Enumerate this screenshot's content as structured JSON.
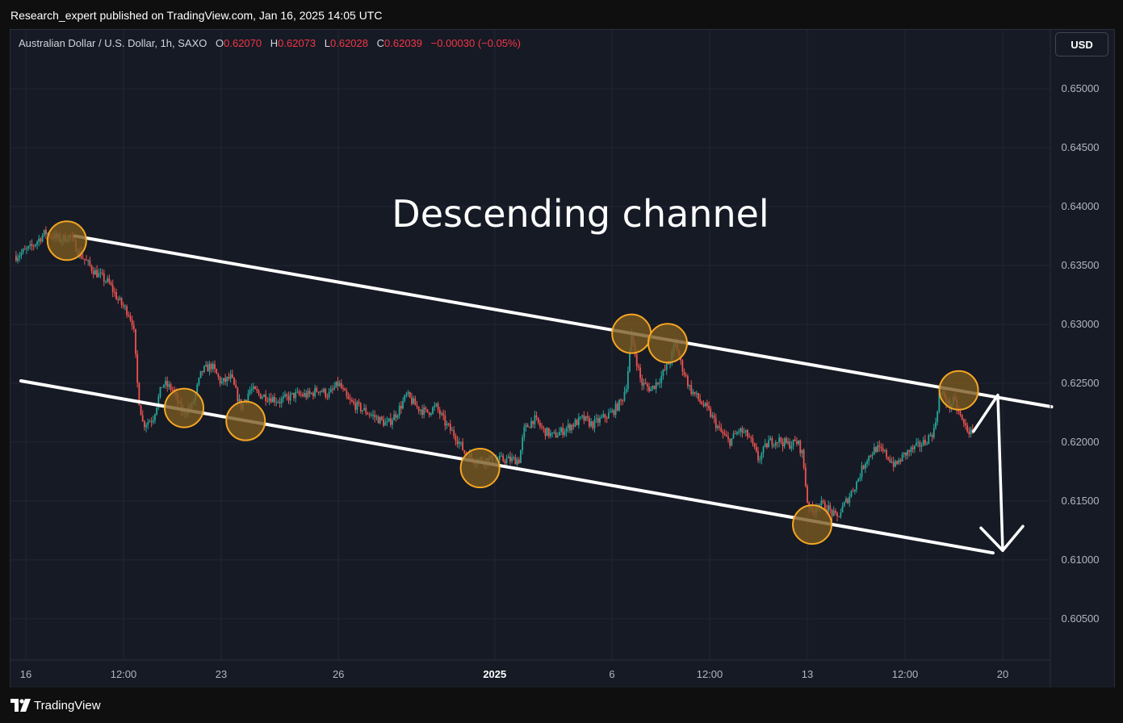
{
  "header": {
    "published": "Research_expert published on TradingView.com, Jan 16, 2025 14:05 UTC"
  },
  "symbol": {
    "name": "Australian Dollar / U.S. Dollar, 1h, SAXO",
    "open_label": "O",
    "open": "0.62070",
    "high_label": "H",
    "high": "0.62073",
    "low_label": "L",
    "low": "0.62028",
    "close_label": "C",
    "close": "0.62039",
    "change": "−0.00030 (−0.05%)"
  },
  "currency_button": "USD",
  "footer": {
    "brand": "TradingView"
  },
  "colors": {
    "up": "#26a69a",
    "down": "#ef5350",
    "annotation": "#ffffff",
    "marker_stroke": "#f5a623",
    "marker_fill": "#7a5a20"
  },
  "chart_data": {
    "type": "candlestick",
    "title": "Descending channel",
    "y_axis": {
      "range": [
        0.6015,
        0.655
      ],
      "ticks": [
        "0.65000",
        "0.64500",
        "0.64000",
        "0.63500",
        "0.63000",
        "0.62500",
        "0.62000",
        "0.61500",
        "0.61000",
        "0.60500"
      ]
    },
    "x_axis": {
      "ticks": [
        {
          "label": "16",
          "t": 0,
          "bold": false
        },
        {
          "label": "12:00",
          "t": 1,
          "bold": false
        },
        {
          "label": "23",
          "t": 2,
          "bold": false
        },
        {
          "label": "26",
          "t": 3.2,
          "bold": false
        },
        {
          "label": "2025",
          "t": 4.8,
          "bold": true
        },
        {
          "label": "6",
          "t": 6,
          "bold": false
        },
        {
          "label": "12:00",
          "t": 7,
          "bold": false
        },
        {
          "label": "13",
          "t": 8,
          "bold": false
        },
        {
          "label": "12:00",
          "t": 9,
          "bold": false
        },
        {
          "label": "20",
          "t": 10,
          "bold": false
        }
      ]
    },
    "price_path": [
      [
        -0.1,
        0.6358
      ],
      [
        0.05,
        0.6365
      ],
      [
        0.2,
        0.6378
      ],
      [
        0.35,
        0.6372
      ],
      [
        0.45,
        0.6375
      ],
      [
        0.55,
        0.636
      ],
      [
        0.7,
        0.6345
      ],
      [
        0.85,
        0.6335
      ],
      [
        0.95,
        0.632
      ],
      [
        1.05,
        0.631
      ],
      [
        1.1,
        0.63
      ],
      [
        1.15,
        0.624
      ],
      [
        1.2,
        0.6215
      ],
      [
        1.3,
        0.622
      ],
      [
        1.4,
        0.625
      ],
      [
        1.5,
        0.6245
      ],
      [
        1.6,
        0.6225
      ],
      [
        1.7,
        0.623
      ],
      [
        1.8,
        0.626
      ],
      [
        1.9,
        0.6265
      ],
      [
        2.0,
        0.625
      ],
      [
        2.1,
        0.6255
      ],
      [
        2.2,
        0.623
      ],
      [
        2.3,
        0.6245
      ],
      [
        2.4,
        0.624
      ],
      [
        2.5,
        0.6238
      ],
      [
        2.6,
        0.6235
      ],
      [
        2.75,
        0.624
      ],
      [
        2.9,
        0.624
      ],
      [
        3.0,
        0.6245
      ],
      [
        3.1,
        0.624
      ],
      [
        3.2,
        0.625
      ],
      [
        3.3,
        0.6235
      ],
      [
        3.4,
        0.623
      ],
      [
        3.5,
        0.6225
      ],
      [
        3.6,
        0.622
      ],
      [
        3.7,
        0.6215
      ],
      [
        3.8,
        0.6225
      ],
      [
        3.9,
        0.624
      ],
      [
        4.0,
        0.623
      ],
      [
        4.1,
        0.6225
      ],
      [
        4.2,
        0.623
      ],
      [
        4.3,
        0.6215
      ],
      [
        4.4,
        0.6205
      ],
      [
        4.5,
        0.619
      ],
      [
        4.6,
        0.6185
      ],
      [
        4.7,
        0.6185
      ],
      [
        4.8,
        0.6185
      ],
      [
        4.9,
        0.6185
      ],
      [
        5.05,
        0.6185
      ],
      [
        5.1,
        0.621
      ],
      [
        5.2,
        0.622
      ],
      [
        5.3,
        0.621
      ],
      [
        5.4,
        0.6205
      ],
      [
        5.5,
        0.621
      ],
      [
        5.6,
        0.6215
      ],
      [
        5.7,
        0.622
      ],
      [
        5.8,
        0.6215
      ],
      [
        5.9,
        0.622
      ],
      [
        6.0,
        0.6225
      ],
      [
        6.1,
        0.6235
      ],
      [
        6.15,
        0.625
      ],
      [
        6.2,
        0.629
      ],
      [
        6.25,
        0.627
      ],
      [
        6.3,
        0.625
      ],
      [
        6.4,
        0.6245
      ],
      [
        6.5,
        0.6255
      ],
      [
        6.6,
        0.627
      ],
      [
        6.65,
        0.6285
      ],
      [
        6.7,
        0.6268
      ],
      [
        6.8,
        0.6245
      ],
      [
        6.9,
        0.6235
      ],
      [
        7.0,
        0.6225
      ],
      [
        7.1,
        0.621
      ],
      [
        7.2,
        0.62
      ],
      [
        7.3,
        0.621
      ],
      [
        7.4,
        0.6205
      ],
      [
        7.5,
        0.6185
      ],
      [
        7.6,
        0.62
      ],
      [
        7.7,
        0.6202
      ],
      [
        7.8,
        0.6198
      ],
      [
        7.9,
        0.62
      ],
      [
        7.95,
        0.619
      ],
      [
        8.0,
        0.615
      ],
      [
        8.05,
        0.614
      ],
      [
        8.1,
        0.6148
      ],
      [
        8.2,
        0.6145
      ],
      [
        8.3,
        0.6135
      ],
      [
        8.4,
        0.615
      ],
      [
        8.5,
        0.6165
      ],
      [
        8.6,
        0.6185
      ],
      [
        8.7,
        0.6195
      ],
      [
        8.8,
        0.619
      ],
      [
        8.9,
        0.618
      ],
      [
        9.0,
        0.619
      ],
      [
        9.1,
        0.6195
      ],
      [
        9.2,
        0.62
      ],
      [
        9.3,
        0.621
      ],
      [
        9.35,
        0.624
      ],
      [
        9.4,
        0.624
      ],
      [
        9.45,
        0.623
      ],
      [
        9.5,
        0.6235
      ],
      [
        9.55,
        0.6225
      ],
      [
        9.6,
        0.6215
      ],
      [
        9.65,
        0.621
      ],
      [
        9.7,
        0.6205
      ]
    ],
    "channel": {
      "upper": [
        [
          0.5,
          0.6375
        ],
        [
          10.5,
          0.623
        ]
      ],
      "lower": [
        [
          -0.05,
          0.6252
        ],
        [
          9.9,
          0.6106
        ]
      ]
    },
    "markers": [
      [
        0.42,
        0.6371
      ],
      [
        1.62,
        0.6229
      ],
      [
        2.25,
        0.6218
      ],
      [
        4.65,
        0.6178
      ],
      [
        6.2,
        0.6292
      ],
      [
        6.57,
        0.6284
      ],
      [
        8.05,
        0.613
      ],
      [
        9.55,
        0.6244
      ]
    ],
    "arrow": {
      "from": [
        9.7,
        0.6209
      ],
      "tip": [
        9.95,
        0.624
      ],
      "to": [
        10.0,
        0.6108
      ]
    }
  }
}
